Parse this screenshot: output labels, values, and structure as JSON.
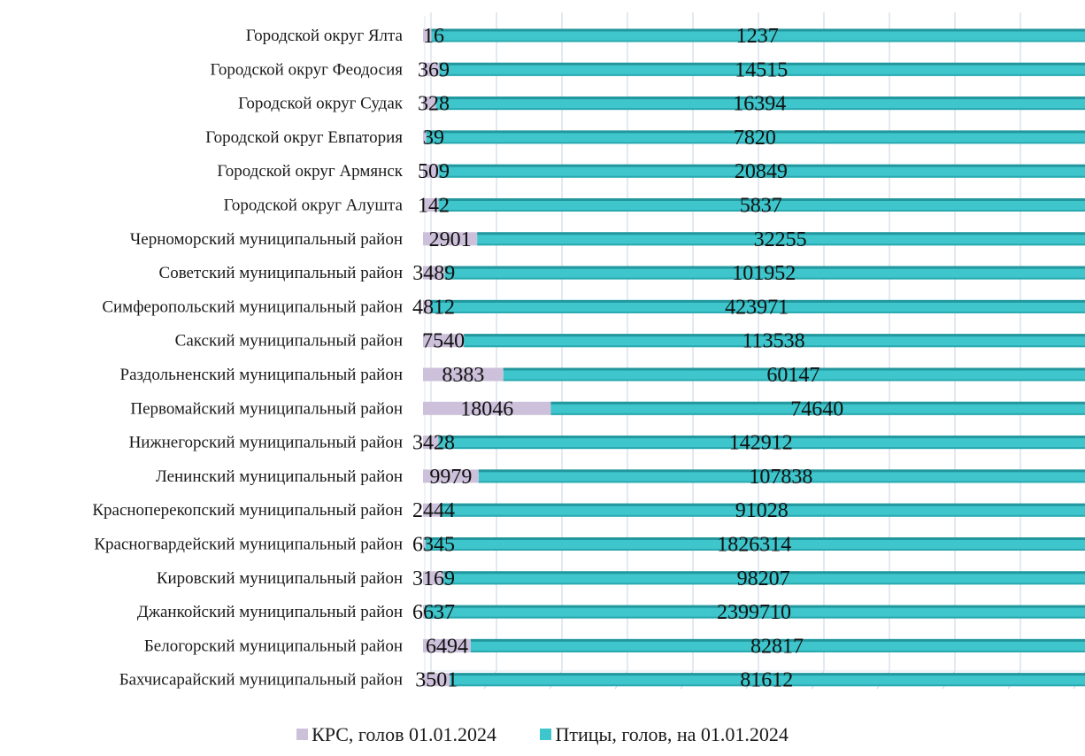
{
  "chart_data": {
    "type": "bar",
    "orientation": "horizontal",
    "stacked": true,
    "percent_stacked": true,
    "categories": [
      "Городской округ Ялта",
      "Городской округ Феодосия",
      "Городской округ Судак",
      "Городской округ Евпатория",
      "Городской округ Армянск",
      "Городской округ Алушта",
      "Черноморский муниципальный район",
      "Советский муниципальный район",
      "Симферопольский муниципальный район",
      "Сакский муниципальный район",
      "Раздольненский муниципальный район",
      "Первомайский муниципальный район",
      "Нижнегорский муниципальный район",
      "Ленинский муниципальный район",
      "Красноперекопский муниципальный район",
      "Красногвардейский муниципальный район",
      "Кировский муниципальный район",
      "Джанкойский муниципальный район",
      "Белогорский муниципальный район",
      "Бахчисарайский муниципальный район"
    ],
    "series": [
      {
        "name": "КРС, голов 01.01.2024",
        "color": "#ccc0da",
        "values": [
          16,
          369,
          328,
          39,
          509,
          142,
          2901,
          3489,
          4812,
          7540,
          8383,
          18046,
          3428,
          9979,
          2444,
          6345,
          3169,
          6637,
          6494,
          3501
        ],
        "labels": [
          "16",
          "369",
          "328",
          "39",
          "509",
          "142",
          "2901",
          "3489",
          "4812",
          "7540",
          "8383",
          "18046",
          "3428",
          "9979",
          "2444",
          "6345",
          "3169",
          "6637",
          "6494",
          "3501"
        ]
      },
      {
        "name": "Птицы, голов, на 01.01.2024",
        "color": "#3ec6cc",
        "values": [
          1237,
          14515,
          16394,
          7820,
          20849,
          5837,
          32255,
          101952,
          423971,
          113538,
          60147,
          74640,
          142912,
          107838,
          91028,
          1826314,
          98207,
          2399710,
          82817,
          81612
        ],
        "labels": [
          "1237",
          "14515",
          "16394",
          "7820",
          "20849",
          "5837",
          "32255",
          "101952",
          "423971",
          "113538",
          "60147",
          "74640",
          "142912",
          "107838",
          "91028",
          "1826314",
          "98207",
          "2399710",
          "82817",
          "81612"
        ]
      }
    ],
    "gridlines": true,
    "legend_position": "bottom"
  },
  "colors": {
    "crs": "#ccc0da",
    "birds": "#3ec6cc",
    "birds_dark": "#23979e",
    "grid": "#c7d3e3"
  }
}
